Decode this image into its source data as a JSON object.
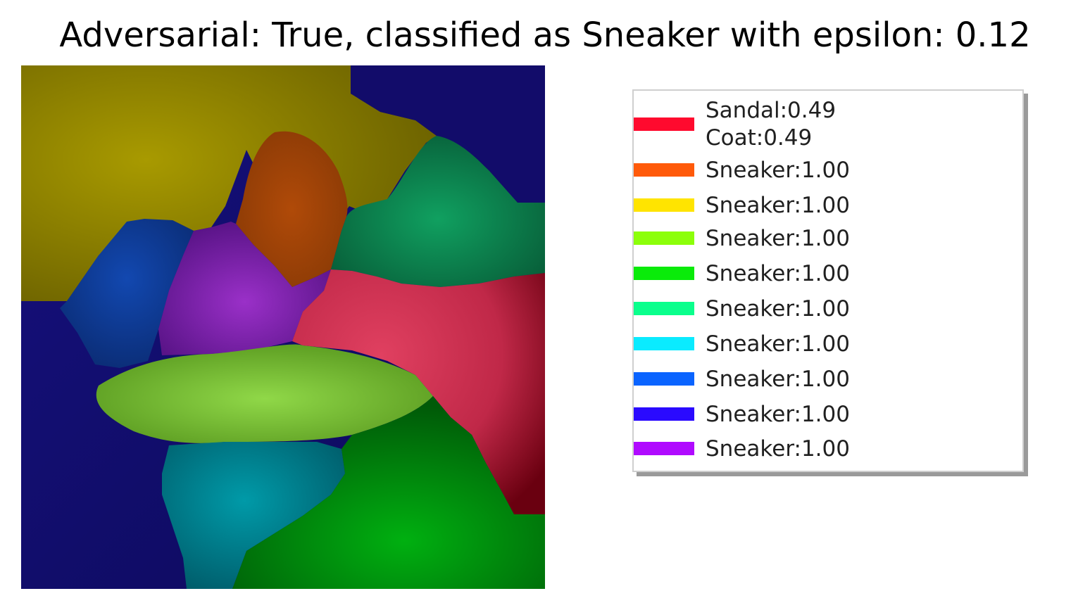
{
  "title": "Adversarial: True, classified as Sneaker with epsilon: 0.12",
  "legend": {
    "entries": [
      {
        "lines": [
          "Sandal:0.49",
          "Coat:0.49"
        ],
        "color": "#ff0a2e"
      },
      {
        "lines": [
          "Sneaker:1.00"
        ],
        "color": "#ff5a0a"
      },
      {
        "lines": [
          "Sneaker:1.00"
        ],
        "color": "#ffe400"
      },
      {
        "lines": [
          "Sneaker:1.00"
        ],
        "color": "#8cff0a"
      },
      {
        "lines": [
          "Sneaker:1.00"
        ],
        "color": "#0aeb0a"
      },
      {
        "lines": [
          "Sneaker:1.00"
        ],
        "color": "#0aff8c"
      },
      {
        "lines": [
          "Sneaker:1.00"
        ],
        "color": "#0aebff"
      },
      {
        "lines": [
          "Sneaker:1.00"
        ],
        "color": "#0a64ff"
      },
      {
        "lines": [
          "Sneaker:1.00"
        ],
        "color": "#2a0aff"
      },
      {
        "lines": [
          "Sneaker:1.00"
        ],
        "color": "#b00aff"
      }
    ]
  },
  "regions": [
    {
      "name": "yellow",
      "color": "#a89a00"
    },
    {
      "name": "orange",
      "color": "#b04a08"
    },
    {
      "name": "teal",
      "color": "#0f8a5a"
    },
    {
      "name": "blue",
      "color": "#1040a0"
    },
    {
      "name": "purple",
      "color": "#8020b0"
    },
    {
      "name": "red",
      "color": "#d83858"
    },
    {
      "name": "lime",
      "color": "#88d040"
    },
    {
      "name": "cyan",
      "color": "#0090a0"
    },
    {
      "name": "green",
      "color": "#00a010"
    },
    {
      "name": "navy",
      "color": "#14107a"
    }
  ]
}
